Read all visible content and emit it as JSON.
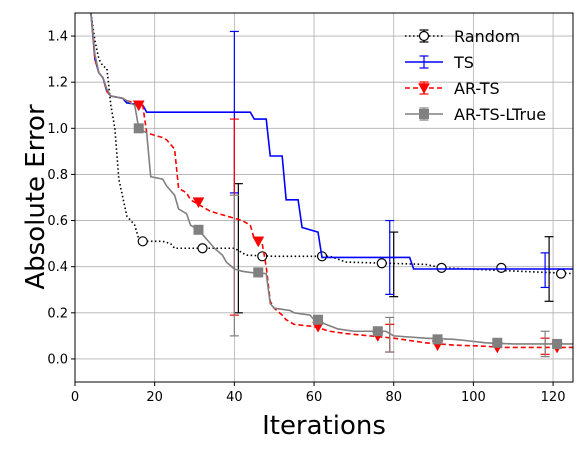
{
  "chart_data": {
    "type": "line",
    "title": "",
    "xlabel": "Iterations",
    "ylabel": "Absolute Error",
    "xlim": [
      0,
      125
    ],
    "ylim": [
      -0.1,
      1.5
    ],
    "xticks": [
      0,
      20,
      40,
      60,
      80,
      100,
      120
    ],
    "yticks": [
      0.0,
      0.2,
      0.4,
      0.6,
      0.8,
      1.0,
      1.2,
      1.4
    ],
    "grid": true,
    "legend_position": "top-right",
    "series": [
      {
        "name": "Random",
        "color": "#000000",
        "line_style": "dotted",
        "marker": "open-circle",
        "points": [
          [
            4,
            1.5
          ],
          [
            5,
            1.38
          ],
          [
            6,
            1.3
          ],
          [
            7,
            1.27
          ],
          [
            8,
            1.26
          ],
          [
            9,
            1.1
          ],
          [
            10,
            1.0
          ],
          [
            11,
            0.78
          ],
          [
            12,
            0.7
          ],
          [
            13,
            0.62
          ],
          [
            14,
            0.6
          ],
          [
            15,
            0.58
          ],
          [
            16,
            0.52
          ],
          [
            17,
            0.51
          ],
          [
            22,
            0.51
          ],
          [
            24,
            0.5
          ],
          [
            25,
            0.48
          ],
          [
            40,
            0.48
          ],
          [
            43,
            0.45
          ],
          [
            50,
            0.445
          ],
          [
            64,
            0.445
          ],
          [
            68,
            0.42
          ],
          [
            88,
            0.41
          ],
          [
            92,
            0.395
          ],
          [
            125,
            0.37
          ]
        ],
        "markers_at": [
          [
            17,
            0.51
          ],
          [
            32,
            0.48
          ],
          [
            47,
            0.445
          ],
          [
            62,
            0.445
          ],
          [
            77,
            0.415
          ],
          [
            92,
            0.395
          ],
          [
            107,
            0.395
          ],
          [
            122,
            0.37
          ]
        ],
        "error_bars": [
          {
            "x": 41,
            "y": 0.48,
            "low": 0.2,
            "high": 0.76
          },
          {
            "x": 80,
            "y": 0.41,
            "low": 0.27,
            "high": 0.55
          },
          {
            "x": 119,
            "y": 0.39,
            "low": 0.25,
            "high": 0.53
          }
        ]
      },
      {
        "name": "TS",
        "color": "#0000ff",
        "line_style": "solid",
        "marker": "none",
        "points": [
          [
            4,
            1.5
          ],
          [
            5,
            1.3
          ],
          [
            6,
            1.24
          ],
          [
            7,
            1.22
          ],
          [
            8,
            1.16
          ],
          [
            9,
            1.14
          ],
          [
            12,
            1.13
          ],
          [
            13,
            1.11
          ],
          [
            17,
            1.1
          ],
          [
            18,
            1.07
          ],
          [
            44,
            1.07
          ],
          [
            45,
            1.04
          ],
          [
            48,
            1.04
          ],
          [
            49,
            0.88
          ],
          [
            52,
            0.88
          ],
          [
            53,
            0.69
          ],
          [
            56,
            0.69
          ],
          [
            57,
            0.57
          ],
          [
            61,
            0.55
          ],
          [
            62,
            0.44
          ],
          [
            84,
            0.44
          ],
          [
            85,
            0.39
          ],
          [
            125,
            0.39
          ]
        ],
        "markers_at": [],
        "error_bars": [
          {
            "x": 40,
            "y": 1.07,
            "low": 0.72,
            "high": 1.42
          },
          {
            "x": 79,
            "y": 0.44,
            "low": 0.28,
            "high": 0.6
          },
          {
            "x": 118,
            "y": 0.39,
            "low": 0.31,
            "high": 0.46
          }
        ]
      },
      {
        "name": "AR-TS",
        "color": "#ff0000",
        "line_style": "dashed",
        "marker": "triangle-down",
        "points": [
          [
            4,
            1.5
          ],
          [
            5,
            1.3
          ],
          [
            6,
            1.24
          ],
          [
            7,
            1.22
          ],
          [
            8,
            1.16
          ],
          [
            9,
            1.14
          ],
          [
            12,
            1.13
          ],
          [
            13,
            1.12
          ],
          [
            17,
            1.1
          ],
          [
            18,
            0.98
          ],
          [
            22,
            0.96
          ],
          [
            23,
            0.95
          ],
          [
            25,
            0.91
          ],
          [
            26,
            0.74
          ],
          [
            28,
            0.72
          ],
          [
            29,
            0.69
          ],
          [
            31,
            0.67
          ],
          [
            34,
            0.64
          ],
          [
            38,
            0.62
          ],
          [
            42,
            0.6
          ],
          [
            44,
            0.58
          ],
          [
            45,
            0.52
          ],
          [
            47,
            0.5
          ],
          [
            48,
            0.4
          ],
          [
            49,
            0.25
          ],
          [
            50,
            0.22
          ],
          [
            52,
            0.19
          ],
          [
            53,
            0.17
          ],
          [
            55,
            0.15
          ],
          [
            60,
            0.14
          ],
          [
            64,
            0.12
          ],
          [
            68,
            0.11
          ],
          [
            74,
            0.1
          ],
          [
            80,
            0.09
          ],
          [
            88,
            0.07
          ],
          [
            95,
            0.06
          ],
          [
            103,
            0.055
          ],
          [
            107,
            0.05
          ],
          [
            125,
            0.05
          ]
        ],
        "markers_at": [
          [
            16,
            1.1
          ],
          [
            31,
            0.68
          ],
          [
            46,
            0.51
          ],
          [
            61,
            0.14
          ],
          [
            76,
            0.1
          ],
          [
            91,
            0.06
          ],
          [
            106,
            0.05
          ],
          [
            121,
            0.05
          ]
        ],
        "error_bars": [
          {
            "x": 40,
            "y": 0.62,
            "low": 0.19,
            "high": 1.04
          },
          {
            "x": 79,
            "y": 0.09,
            "low": 0.03,
            "high": 0.15
          },
          {
            "x": 118,
            "y": 0.05,
            "low": 0.02,
            "high": 0.09
          }
        ]
      },
      {
        "name": "AR-TS-LTrue",
        "color": "#808080",
        "line_style": "solid",
        "marker": "square",
        "points": [
          [
            4,
            1.5
          ],
          [
            5,
            1.32
          ],
          [
            6,
            1.24
          ],
          [
            7,
            1.22
          ],
          [
            8,
            1.17
          ],
          [
            9,
            1.14
          ],
          [
            12,
            1.13
          ],
          [
            13,
            1.12
          ],
          [
            15,
            1.1
          ],
          [
            16,
            1.0
          ],
          [
            18,
            0.98
          ],
          [
            19,
            0.79
          ],
          [
            22,
            0.78
          ],
          [
            23,
            0.75
          ],
          [
            25,
            0.71
          ],
          [
            26,
            0.65
          ],
          [
            28,
            0.63
          ],
          [
            29,
            0.58
          ],
          [
            31,
            0.56
          ],
          [
            33,
            0.52
          ],
          [
            35,
            0.48
          ],
          [
            37,
            0.45
          ],
          [
            38,
            0.42
          ],
          [
            40,
            0.39
          ],
          [
            42,
            0.38
          ],
          [
            44,
            0.375
          ],
          [
            48,
            0.37
          ],
          [
            49,
            0.24
          ],
          [
            50,
            0.22
          ],
          [
            54,
            0.21
          ],
          [
            55,
            0.2
          ],
          [
            59,
            0.19
          ],
          [
            60,
            0.17
          ],
          [
            63,
            0.15
          ],
          [
            66,
            0.13
          ],
          [
            70,
            0.12
          ],
          [
            78,
            0.12
          ],
          [
            80,
            0.1
          ],
          [
            88,
            0.09
          ],
          [
            95,
            0.085
          ],
          [
            98,
            0.08
          ],
          [
            103,
            0.07
          ],
          [
            110,
            0.065
          ],
          [
            125,
            0.065
          ]
        ],
        "markers_at": [
          [
            16,
            1.0
          ],
          [
            31,
            0.56
          ],
          [
            46,
            0.375
          ],
          [
            61,
            0.17
          ],
          [
            76,
            0.12
          ],
          [
            91,
            0.085
          ],
          [
            106,
            0.07
          ],
          [
            121,
            0.065
          ]
        ],
        "error_bars": [
          {
            "x": 40,
            "y": 0.39,
            "low": 0.1,
            "high": 0.71
          },
          {
            "x": 79,
            "y": 0.1,
            "low": 0.03,
            "high": 0.18
          },
          {
            "x": 118,
            "y": 0.07,
            "low": 0.01,
            "high": 0.12
          }
        ]
      }
    ]
  }
}
